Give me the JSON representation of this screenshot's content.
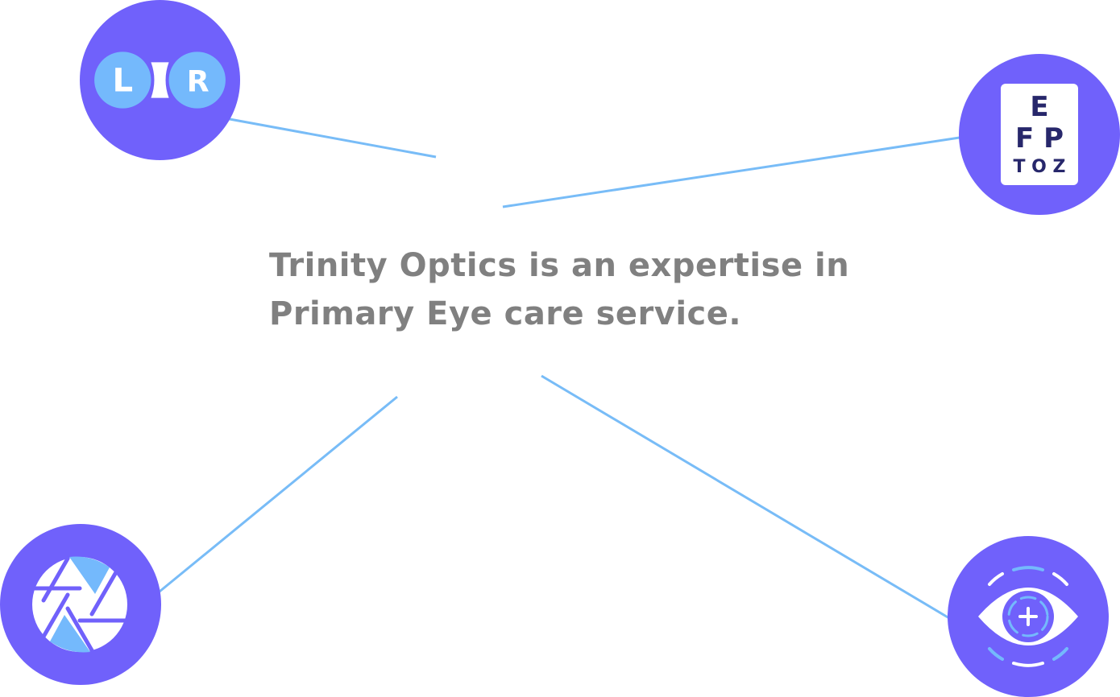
{
  "tagline": {
    "line1": "Trinity Optics is an expertise in",
    "line2": "Primary Eye care service."
  },
  "badges": {
    "lenses": {
      "icon": "lens-left-right-icon",
      "left_letter": "L",
      "right_letter": "R"
    },
    "eye_chart": {
      "icon": "eye-chart-icon",
      "rows": [
        "E",
        "F P",
        "T O Z"
      ]
    },
    "aperture": {
      "icon": "aperture-icon"
    },
    "eye_exam": {
      "icon": "eye-exam-icon"
    }
  },
  "colors": {
    "badge": "#7061fb",
    "accent_light_blue": "#74b9fc",
    "connector": "#78bcf7",
    "text": "#808080",
    "chart_letters": "#27276b"
  }
}
